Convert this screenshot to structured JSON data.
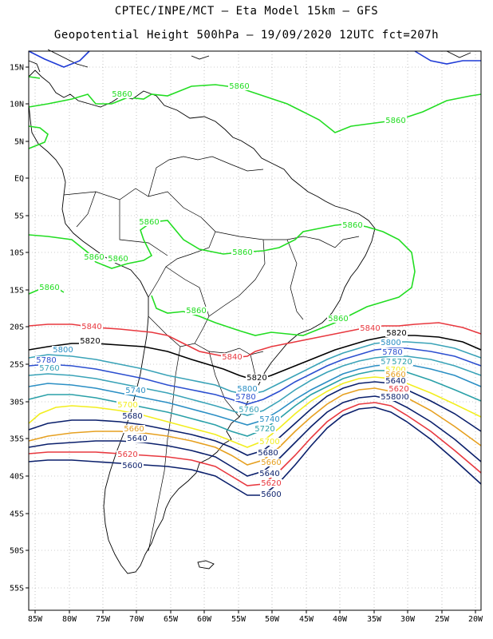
{
  "title_line1": "CPTEC/INPE/MCT –  Eta Model 15km – GFS",
  "title_line2": "Geopotential Height 500hPa – 19/09/2020 12UTC fct=207h",
  "lat_labels": [
    "15N",
    "10N",
    "5N",
    "EQ",
    "5S",
    "10S",
    "15S",
    "20S",
    "25S",
    "30S",
    "35S",
    "40S",
    "45S",
    "50S",
    "55S"
  ],
  "lon_labels": [
    "85W",
    "80W",
    "75W",
    "70W",
    "65W",
    "60W",
    "55W",
    "50W",
    "45W",
    "40W",
    "35W",
    "30W",
    "25W",
    "20W"
  ],
  "contour_colors": {
    "5580": "#1f3bd6",
    "5800": "#0a1f6b",
    "5620": "#e8383f",
    "5660": "#e6a020",
    "5700": "#f2ee20",
    "5720": "#2aa0a8",
    "5740": "#2b8fc4",
    "5760": "#3aa3b8",
    "5780": "#2c4fd0",
    "5820": "#000000",
    "5840": "#e8383f",
    "5860": "#22dd22"
  },
  "contour_labels": [
    {
      "text": "5860",
      "color": "5860"
    },
    {
      "text": "5860",
      "color": "5860"
    },
    {
      "text": "5860",
      "color": "5860"
    },
    {
      "text": "5860",
      "color": "5860"
    },
    {
      "text": "5860",
      "color": "5860"
    },
    {
      "text": "5860",
      "color": "5860"
    },
    {
      "text": "5860",
      "color": "5860"
    },
    {
      "text": "5860",
      "color": "5860"
    },
    {
      "text": "5860",
      "color": "5860"
    },
    {
      "text": "5860",
      "color": "5860"
    },
    {
      "text": "5860",
      "color": "5860"
    },
    {
      "text": "5840",
      "color": "5840"
    },
    {
      "text": "5840",
      "color": "5840"
    },
    {
      "text": "5840",
      "color": "5840"
    },
    {
      "text": "5820",
      "color": "5820"
    },
    {
      "text": "5820",
      "color": "5820"
    },
    {
      "text": "5820",
      "color": "5820"
    },
    {
      "text": "5800",
      "color": "5740"
    },
    {
      "text": "5800",
      "color": "5740"
    },
    {
      "text": "5800",
      "color": "5740"
    },
    {
      "text": "5780",
      "color": "5780"
    },
    {
      "text": "5780",
      "color": "5780"
    },
    {
      "text": "5780",
      "color": "5780"
    },
    {
      "text": "5760",
      "color": "5760"
    },
    {
      "text": "5760",
      "color": "5760"
    },
    {
      "text": "5760",
      "color": "5760"
    },
    {
      "text": "5740",
      "color": "5740"
    },
    {
      "text": "5740",
      "color": "5740"
    },
    {
      "text": "5720",
      "color": "5720"
    },
    {
      "text": "5720",
      "color": "5720"
    },
    {
      "text": "5700",
      "color": "5700"
    },
    {
      "text": "5700",
      "color": "5700"
    },
    {
      "text": "5700",
      "color": "5700"
    },
    {
      "text": "5680",
      "color": "5800"
    },
    {
      "text": "5680",
      "color": "5800"
    },
    {
      "text": "5680",
      "color": "5800"
    },
    {
      "text": "5660",
      "color": "5660"
    },
    {
      "text": "5660",
      "color": "5660"
    },
    {
      "text": "5660",
      "color": "5660"
    },
    {
      "text": "5640",
      "color": "5800"
    },
    {
      "text": "5640",
      "color": "5800"
    },
    {
      "text": "5640",
      "color": "5800"
    },
    {
      "text": "5620",
      "color": "5620"
    },
    {
      "text": "5620",
      "color": "5620"
    },
    {
      "text": "5620",
      "color": "5620"
    },
    {
      "text": "5600",
      "color": "5800"
    },
    {
      "text": "5600",
      "color": "5800"
    },
    {
      "text": "5600",
      "color": "5800"
    },
    {
      "text": "5580",
      "color": "5800"
    }
  ]
}
